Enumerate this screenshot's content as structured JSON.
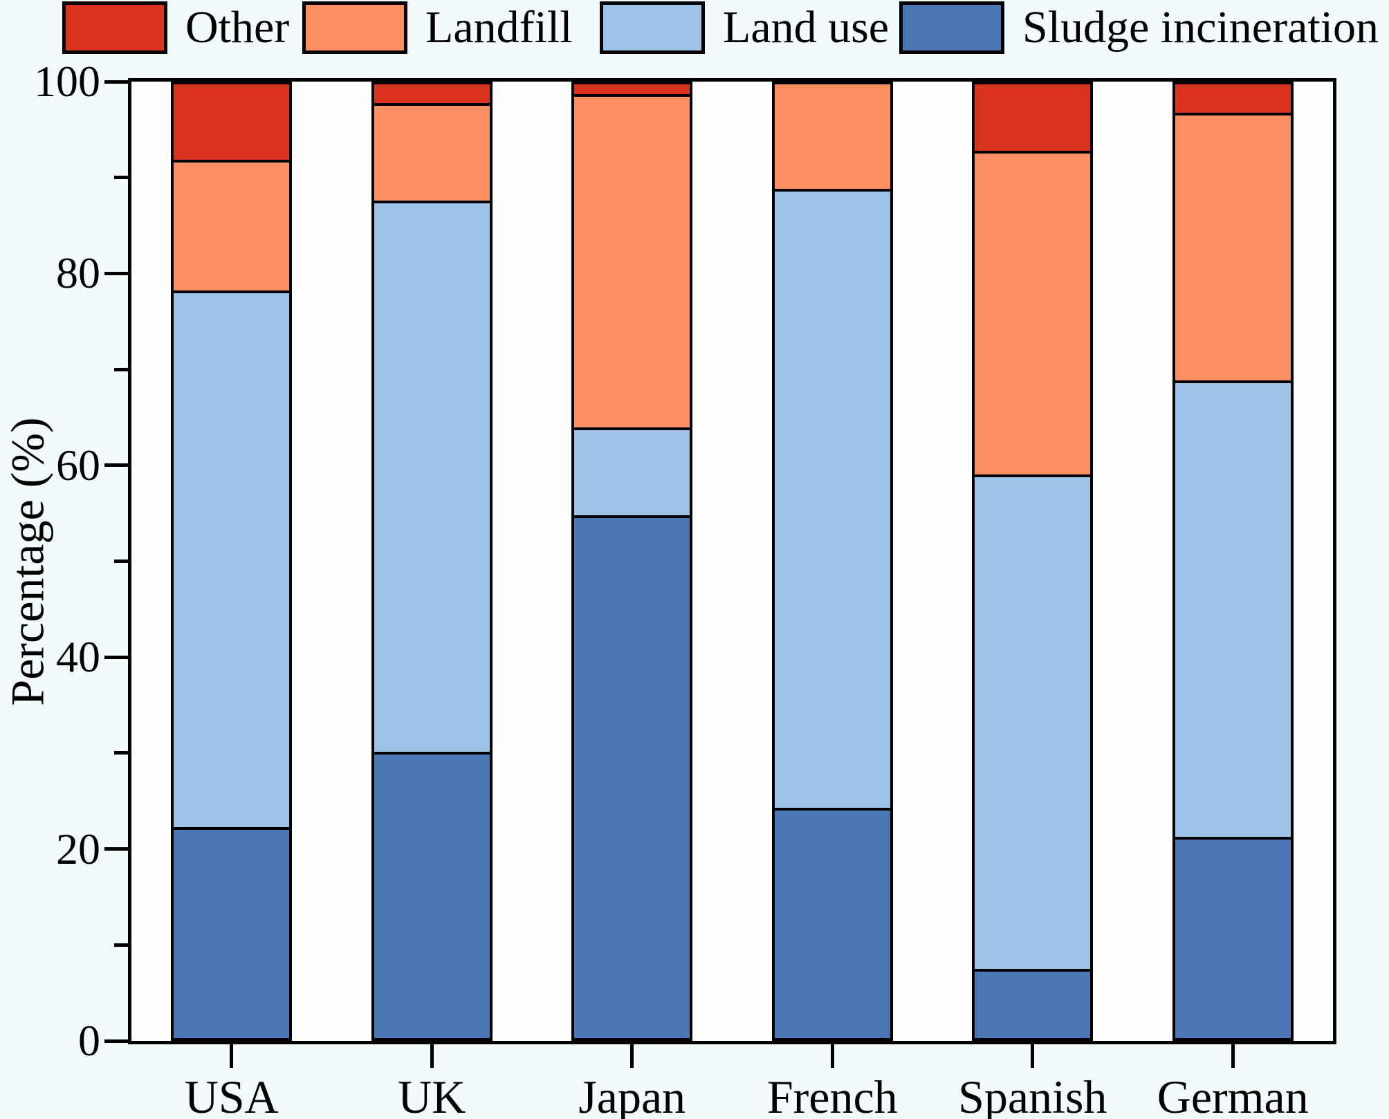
{
  "figure": {
    "background": "#f2fafb",
    "plot_background": "#fdffff",
    "axis_color": "#000000"
  },
  "legend": [
    {
      "label": "Other",
      "color": "#d9331f"
    },
    {
      "label": "Landfill",
      "color": "#fb8f61"
    },
    {
      "label": "Land use",
      "color": "#9cc3e5"
    },
    {
      "label": "Sludge incineration",
      "color": "#4d76b4"
    }
  ],
  "chart_data": {
    "type": "bar",
    "stacked": true,
    "title": "",
    "xlabel": "",
    "ylabel": "Percentage (%)",
    "ylim": [
      0,
      100
    ],
    "yticks": [
      0,
      20,
      40,
      60,
      80,
      100
    ],
    "minor_yticks": [
      10,
      30,
      50,
      70,
      90
    ],
    "grid": false,
    "legend_position": "top",
    "categories": [
      "USA",
      "UK",
      "Japan",
      "French",
      "Spanish",
      "German"
    ],
    "series": [
      {
        "name": "Sludge incineration",
        "color": "#4d76b4",
        "values": [
          22,
          30,
          55,
          24,
          7,
          21
        ]
      },
      {
        "name": "Land use",
        "color": "#9cc3e5",
        "values": [
          56.5,
          58,
          9,
          65,
          52,
          48
        ]
      },
      {
        "name": "Landfill",
        "color": "#fb8f61",
        "values": [
          13.5,
          10,
          35,
          11,
          34,
          28
        ]
      },
      {
        "name": "Other",
        "color": "#d9331f",
        "values": [
          8,
          2,
          1,
          0,
          7,
          3
        ]
      }
    ]
  }
}
